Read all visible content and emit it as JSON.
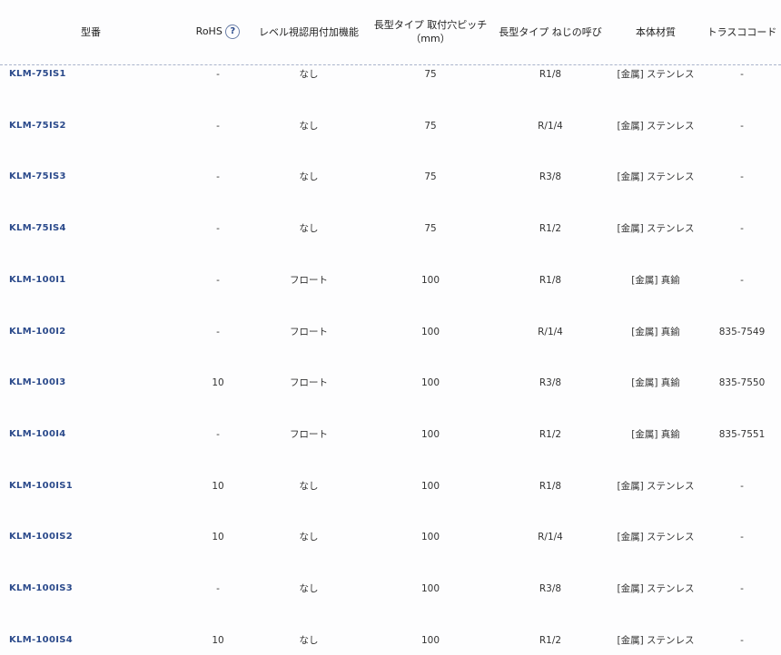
{
  "header": {
    "model": "型番",
    "rohs": "RoHS",
    "rohs_help": "?",
    "level": "レベル視認用付加機能",
    "pitch_line1": "長型タイプ 取付穴ピッチ",
    "pitch_line2": "（mm）",
    "thread": "長型タイプ ねじの呼び",
    "material": "本体材質",
    "code": "トラスココード"
  },
  "rows": [
    {
      "model": "KLM-75IS1",
      "rohs": "-",
      "level": "なし",
      "pitch": "75",
      "thread": "R1/8",
      "material": "[金属] ステンレス",
      "code": "-"
    },
    {
      "model": "KLM-75IS2",
      "rohs": "-",
      "level": "なし",
      "pitch": "75",
      "thread": "R/1/4",
      "material": "[金属] ステンレス",
      "code": "-"
    },
    {
      "model": "KLM-75IS3",
      "rohs": "-",
      "level": "なし",
      "pitch": "75",
      "thread": "R3/8",
      "material": "[金属] ステンレス",
      "code": "-"
    },
    {
      "model": "KLM-75IS4",
      "rohs": "-",
      "level": "なし",
      "pitch": "75",
      "thread": "R1/2",
      "material": "[金属] ステンレス",
      "code": "-"
    },
    {
      "model": "KLM-100I1",
      "rohs": "-",
      "level": "フロート",
      "pitch": "100",
      "thread": "R1/8",
      "material": "[金属] 真鍮",
      "code": "-"
    },
    {
      "model": "KLM-100I2",
      "rohs": "-",
      "level": "フロート",
      "pitch": "100",
      "thread": "R/1/4",
      "material": "[金属] 真鍮",
      "code": "835-7549"
    },
    {
      "model": "KLM-100I3",
      "rohs": "10",
      "level": "フロート",
      "pitch": "100",
      "thread": "R3/8",
      "material": "[金属] 真鍮",
      "code": "835-7550"
    },
    {
      "model": "KLM-100I4",
      "rohs": "-",
      "level": "フロート",
      "pitch": "100",
      "thread": "R1/2",
      "material": "[金属] 真鍮",
      "code": "835-7551"
    },
    {
      "model": "KLM-100IS1",
      "rohs": "10",
      "level": "なし",
      "pitch": "100",
      "thread": "R1/8",
      "material": "[金属] ステンレス",
      "code": "-"
    },
    {
      "model": "KLM-100IS2",
      "rohs": "10",
      "level": "なし",
      "pitch": "100",
      "thread": "R/1/4",
      "material": "[金属] ステンレス",
      "code": "-"
    },
    {
      "model": "KLM-100IS3",
      "rohs": "-",
      "level": "なし",
      "pitch": "100",
      "thread": "R3/8",
      "material": "[金属] ステンレス",
      "code": "-"
    },
    {
      "model": "KLM-100IS4",
      "rohs": "10",
      "level": "なし",
      "pitch": "100",
      "thread": "R1/2",
      "material": "[金属] ステンレス",
      "code": "-"
    }
  ]
}
